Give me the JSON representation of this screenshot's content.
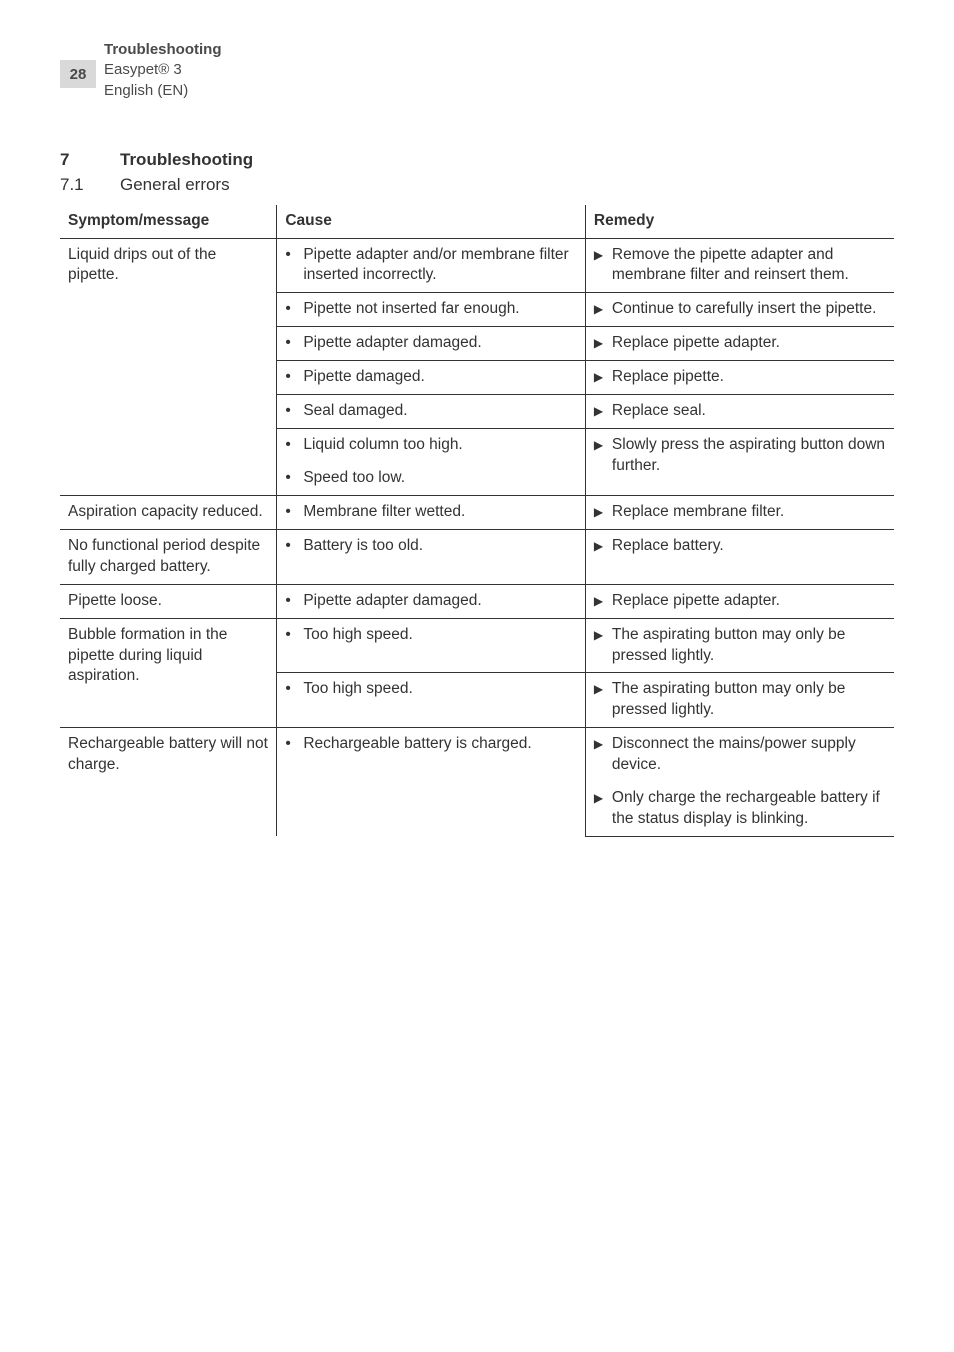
{
  "header": {
    "page_number": "28",
    "section_title": "Troubleshooting",
    "product": "Easypet® 3",
    "language": "English (EN)"
  },
  "section": {
    "num1": "7",
    "label1": "Troubleshooting",
    "num2": "7.1",
    "label2": "General errors"
  },
  "table": {
    "headers": {
      "symptom": "Symptom/message",
      "cause": "Cause",
      "remedy": "Remedy"
    },
    "rows": [
      {
        "symptom": "Liquid drips out of the pipette.",
        "cause": "Pipette adapter and/or membrane filter inserted incorrectly.",
        "remedy": "Remove the pipette adapter and membrane filter and reinsert them.",
        "sym_span": 6,
        "rem_span": 1
      },
      {
        "cause": "Pipette not inserted far enough.",
        "remedy": "Continue to carefully insert the pipette."
      },
      {
        "cause": "Pipette adapter damaged.",
        "remedy": "Replace pipette adapter."
      },
      {
        "cause": "Pipette damaged.",
        "remedy": "Replace pipette."
      },
      {
        "cause": "Seal damaged.",
        "remedy": "Replace seal."
      },
      {
        "cause": "Liquid column too high.",
        "cause2": "Speed too low.",
        "remedy": "Slowly press the aspirating button down further.",
        "double_cause": true
      },
      {
        "symptom": "Aspiration capacity reduced.",
        "cause": "Membrane filter wetted.",
        "remedy": "Replace membrane filter."
      },
      {
        "symptom": "No functional period despite fully charged battery.",
        "cause": "Battery is too old.",
        "remedy": "Replace battery."
      },
      {
        "symptom": "Pipette loose.",
        "cause": "Pipette adapter damaged.",
        "remedy": "Replace pipette adapter."
      },
      {
        "symptom": "Bubble formation in the pipette during liquid aspiration.",
        "cause": "Too high speed.",
        "remedy": "The aspirating button may only be pressed lightly.",
        "sym_span": 2
      },
      {
        "cause": "Too high speed.",
        "remedy": "The aspirating button may only be pressed lightly."
      },
      {
        "symptom": "Rechargeable battery will not charge.",
        "cause": "Rechargeable battery is charged.",
        "remedy": "Disconnect the mains/power supply device.",
        "remedy2": "Only charge the rechargeable battery if the status display is blinking.",
        "double_remedy": true
      }
    ]
  }
}
